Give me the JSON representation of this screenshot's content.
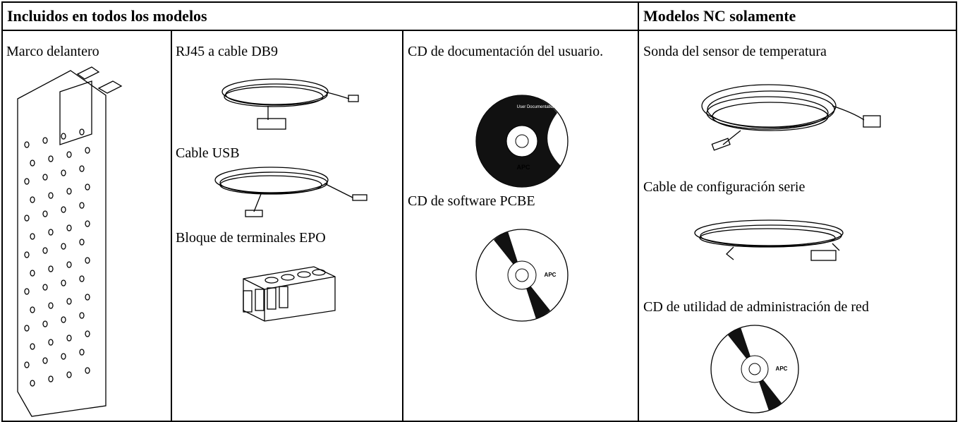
{
  "table": {
    "header": [
      "Incluidos en todos los modelos",
      "Modelos NC solamente"
    ],
    "cells": [
      [
        "Marco delantero"
      ],
      [
        "RJ45 a cable DB9",
        "Cable USB",
        "Bloque de terminales EPO"
      ],
      [
        "CD de documentación del usuario.",
        "CD de software PCBE"
      ],
      [
        "Sonda del sensor de temperatura",
        "Cable de configuración serie",
        "CD de utilidad de administración de red"
      ]
    ]
  },
  "labels": {
    "cd_title": "User Documentation",
    "brand": "APC"
  }
}
